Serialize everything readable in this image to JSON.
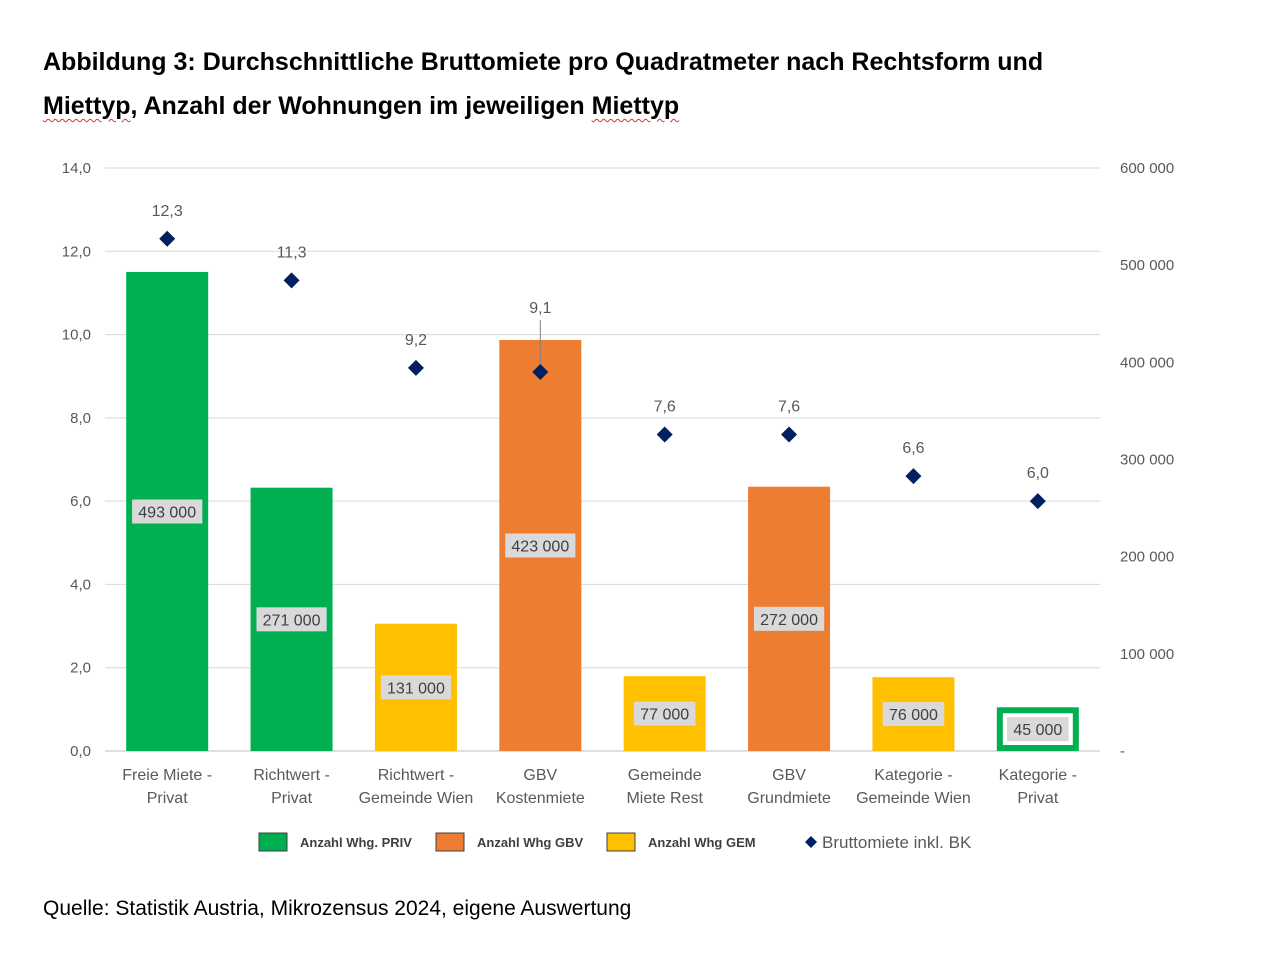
{
  "title_parts": {
    "line1": "Abbildung 3: Durchschnittliche Bruttomiete pro Quadratmeter nach Rechtsform und",
    "line2_a": "Miettyp",
    "line2_b": ", Anzahl der Wohnungen im jeweiligen ",
    "line2_c": "Miettyp"
  },
  "source": "Quelle: Statistik Austria, Mikrozensus 2024, eigene Auswertung",
  "chart_data": {
    "type": "bar",
    "categories": [
      [
        "Freie Miete -",
        "Privat"
      ],
      [
        "Richtwert -",
        "Privat"
      ],
      [
        "Richtwert -",
        "Gemeinde Wien"
      ],
      [
        "GBV",
        "Kostenmiete"
      ],
      [
        "Gemeinde",
        "Miete Rest"
      ],
      [
        "GBV",
        "Grundmiete"
      ],
      [
        "Kategorie -",
        "Gemeinde Wien"
      ],
      [
        "Kategorie -",
        "Privat"
      ]
    ],
    "bars": {
      "values": [
        493000,
        271000,
        131000,
        423000,
        77000,
        272000,
        76000,
        45000
      ],
      "labels": [
        "493 000",
        "271 000",
        "131 000",
        "423 000",
        "77 000",
        "272 000",
        "76 000",
        "45 000"
      ],
      "series_index": [
        0,
        0,
        2,
        1,
        2,
        1,
        2,
        0
      ],
      "axis": "right"
    },
    "bar_series": [
      {
        "name": "Anzahl Whg. PRIV",
        "color": "#00b050"
      },
      {
        "name": "Anzahl Whg GBV",
        "color": "#ed7d31"
      },
      {
        "name": "Anzahl Whg GEM",
        "color": "#ffc000"
      }
    ],
    "line_series": {
      "name": "Bruttomiete inkl. BK",
      "color": "#002060",
      "values": [
        12.3,
        11.3,
        9.2,
        9.1,
        7.6,
        7.6,
        6.6,
        6.0
      ],
      "labels": [
        "12,3",
        "11,3",
        "9,2",
        "9,1",
        "7,6",
        "7,6",
        "6,6",
        "6,0"
      ],
      "axis": "left"
    },
    "left_axis": {
      "ylim": [
        0,
        14
      ],
      "ticks": [
        "0,0",
        "2,0",
        "4,0",
        "6,0",
        "8,0",
        "10,0",
        "12,0",
        "14,0"
      ]
    },
    "right_axis": {
      "ylim": [
        0,
        600000
      ],
      "ticks": [
        "-",
        "100 000",
        "200 000",
        "300 000",
        "400 000",
        "500 000",
        "600 000"
      ]
    },
    "grid": true,
    "legend_position": "bottom"
  }
}
